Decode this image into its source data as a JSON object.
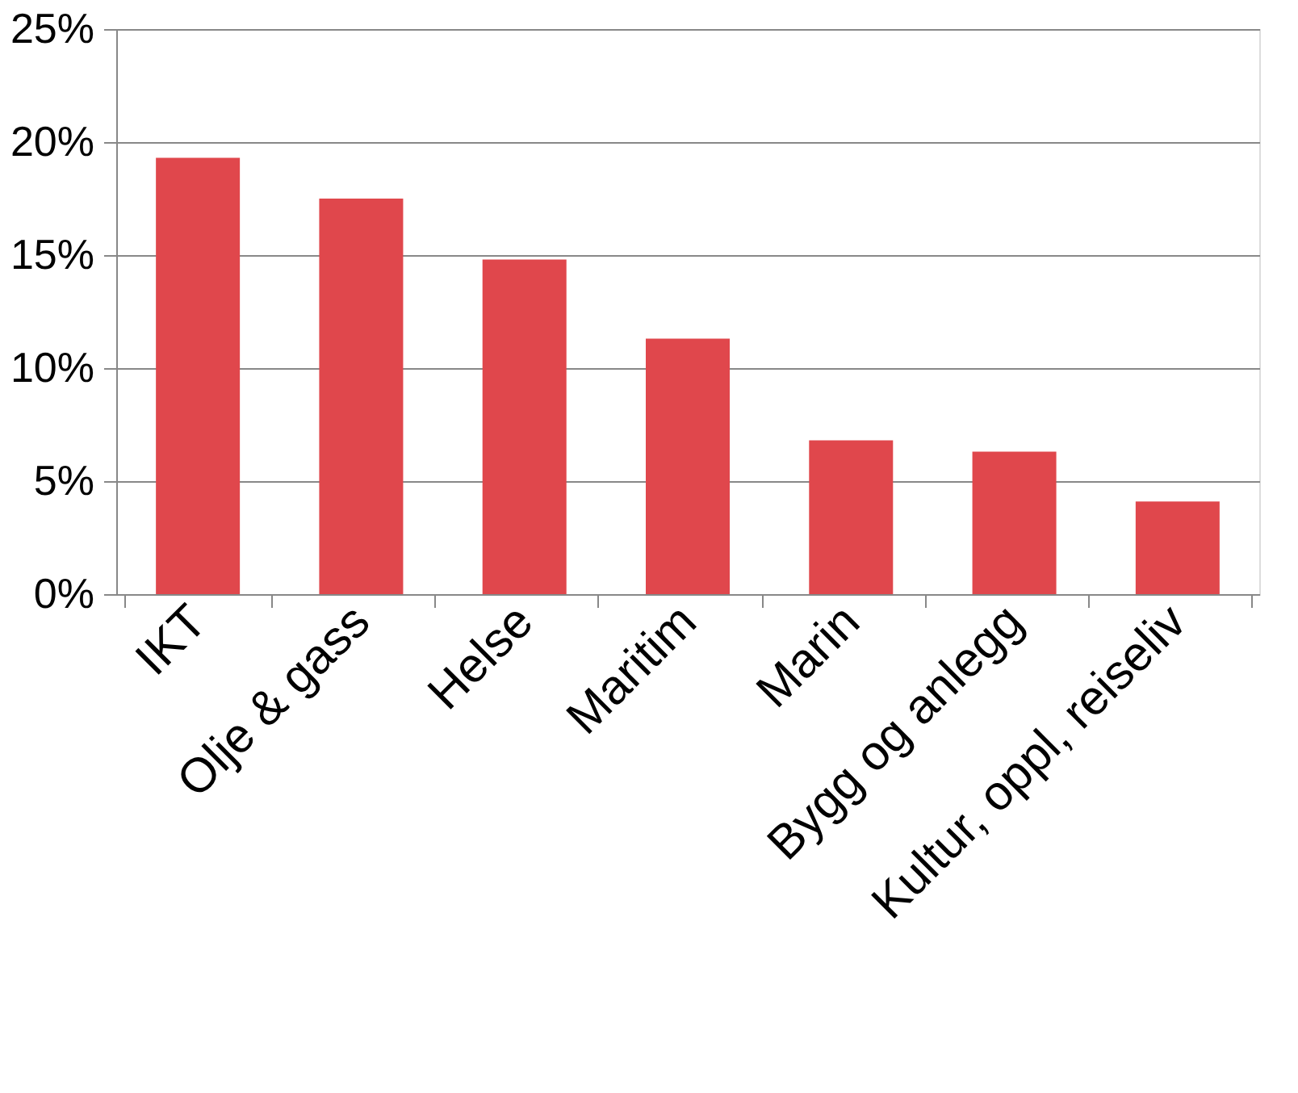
{
  "chart_data": {
    "type": "bar",
    "categories": [
      "IKT",
      "Olje & gass",
      "Helse",
      "Maritim",
      "Marin",
      "Bygg og anlegg",
      "Kultur, oppl, reiseliv"
    ],
    "values": [
      19.3,
      17.5,
      14.8,
      11.3,
      6.8,
      6.3,
      4.1
    ],
    "color": "#e0474c",
    "ylim": [
      0,
      25
    ],
    "yticks": [
      {
        "value": 0,
        "label": "0%"
      },
      {
        "value": 5,
        "label": "5%"
      },
      {
        "value": 10,
        "label": "10%"
      },
      {
        "value": 15,
        "label": "15%"
      },
      {
        "value": 20,
        "label": "20%"
      },
      {
        "value": 25,
        "label": "25%"
      }
    ],
    "grid": "y"
  }
}
